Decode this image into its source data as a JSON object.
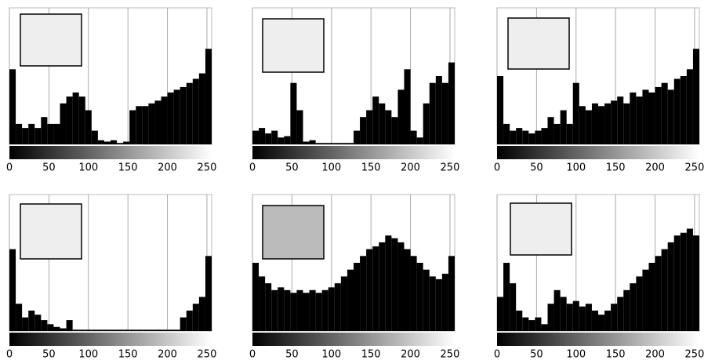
{
  "chart_data": [
    {
      "type": "histogram",
      "bins": [
        0,
        8,
        16,
        24,
        32,
        40,
        48,
        56,
        64,
        72,
        80,
        88,
        96,
        104,
        112,
        120,
        128,
        136,
        144,
        152,
        160,
        168,
        176,
        184,
        192,
        200,
        208,
        216,
        224,
        232,
        240,
        248,
        256
      ],
      "counts": [
        55,
        15,
        12,
        15,
        12,
        20,
        15,
        15,
        30,
        35,
        38,
        35,
        25,
        10,
        3,
        2,
        3,
        1,
        2,
        25,
        28,
        28,
        30,
        32,
        35,
        38,
        40,
        42,
        45,
        48,
        52,
        70
      ],
      "xlim": [
        0,
        256
      ],
      "ylim": [
        0,
        100
      ],
      "xticks": [
        0,
        50,
        100,
        150,
        200,
        250
      ],
      "color": "#000000",
      "grid": true
    },
    {
      "type": "histogram",
      "bins": [
        0,
        8,
        16,
        24,
        32,
        40,
        48,
        56,
        64,
        72,
        80,
        88,
        96,
        104,
        112,
        120,
        128,
        136,
        144,
        152,
        160,
        168,
        176,
        184,
        192,
        200,
        208,
        216,
        224,
        232,
        240,
        248,
        256
      ],
      "counts": [
        10,
        12,
        8,
        10,
        5,
        6,
        45,
        25,
        2,
        3,
        1,
        1,
        1,
        1,
        1,
        1,
        10,
        20,
        25,
        35,
        30,
        25,
        20,
        40,
        55,
        10,
        5,
        30,
        45,
        50,
        45,
        60
      ],
      "xlim": [
        0,
        256
      ],
      "ylim": [
        0,
        100
      ],
      "xticks": [
        0,
        50,
        100,
        150,
        200,
        250
      ],
      "color": "#000000",
      "grid": true
    },
    {
      "type": "histogram",
      "bins": [
        0,
        8,
        16,
        24,
        32,
        40,
        48,
        56,
        64,
        72,
        80,
        88,
        96,
        104,
        112,
        120,
        128,
        136,
        144,
        152,
        160,
        168,
        176,
        184,
        192,
        200,
        208,
        216,
        224,
        232,
        240,
        248,
        256
      ],
      "counts": [
        50,
        15,
        10,
        12,
        10,
        8,
        10,
        12,
        20,
        15,
        25,
        15,
        45,
        28,
        25,
        30,
        28,
        30,
        32,
        35,
        30,
        38,
        35,
        40,
        38,
        42,
        45,
        40,
        48,
        50,
        55,
        70
      ],
      "xlim": [
        0,
        256
      ],
      "ylim": [
        0,
        100
      ],
      "xticks": [
        0,
        50,
        100,
        150,
        200,
        250
      ],
      "color": "#000000",
      "grid": true
    },
    {
      "type": "histogram",
      "bins": [
        0,
        8,
        16,
        24,
        32,
        40,
        48,
        56,
        64,
        72,
        80,
        88,
        96,
        104,
        112,
        120,
        128,
        136,
        144,
        152,
        160,
        168,
        176,
        184,
        192,
        200,
        208,
        216,
        224,
        232,
        240,
        248,
        256
      ],
      "counts": [
        60,
        20,
        10,
        15,
        12,
        8,
        5,
        3,
        2,
        8,
        1,
        1,
        1,
        1,
        1,
        1,
        1,
        1,
        1,
        1,
        1,
        1,
        1,
        1,
        1,
        1,
        1,
        10,
        15,
        20,
        25,
        55
      ],
      "xlim": [
        0,
        256
      ],
      "ylim": [
        0,
        100
      ],
      "xticks": [
        0,
        50,
        100,
        150,
        200,
        250
      ],
      "color": "#000000",
      "grid": true
    },
    {
      "type": "histogram",
      "bins": [
        0,
        8,
        16,
        24,
        32,
        40,
        48,
        56,
        64,
        72,
        80,
        88,
        96,
        104,
        112,
        120,
        128,
        136,
        144,
        152,
        160,
        168,
        176,
        184,
        192,
        200,
        208,
        216,
        224,
        232,
        240,
        248,
        256
      ],
      "counts": [
        50,
        40,
        35,
        30,
        32,
        30,
        28,
        30,
        28,
        30,
        28,
        30,
        32,
        35,
        40,
        45,
        50,
        55,
        60,
        62,
        65,
        70,
        68,
        65,
        60,
        55,
        50,
        45,
        40,
        38,
        42,
        55
      ],
      "xlim": [
        0,
        256
      ],
      "ylim": [
        0,
        100
      ],
      "xticks": [
        0,
        50,
        100,
        150,
        200,
        250
      ],
      "color": "#000000",
      "grid": true
    },
    {
      "type": "histogram",
      "bins": [
        0,
        8,
        16,
        24,
        32,
        40,
        48,
        56,
        64,
        72,
        80,
        88,
        96,
        104,
        112,
        120,
        128,
        136,
        144,
        152,
        160,
        168,
        176,
        184,
        192,
        200,
        208,
        216,
        224,
        232,
        240,
        248,
        256
      ],
      "counts": [
        25,
        50,
        35,
        15,
        10,
        8,
        10,
        5,
        20,
        30,
        25,
        20,
        22,
        18,
        20,
        15,
        12,
        15,
        20,
        25,
        30,
        35,
        40,
        45,
        50,
        55,
        60,
        65,
        70,
        72,
        75,
        70
      ],
      "xlim": [
        0,
        256
      ],
      "ylim": [
        0,
        100
      ],
      "xticks": [
        0,
        50,
        100,
        150,
        200,
        250
      ],
      "color": "#000000",
      "grid": true
    }
  ]
}
